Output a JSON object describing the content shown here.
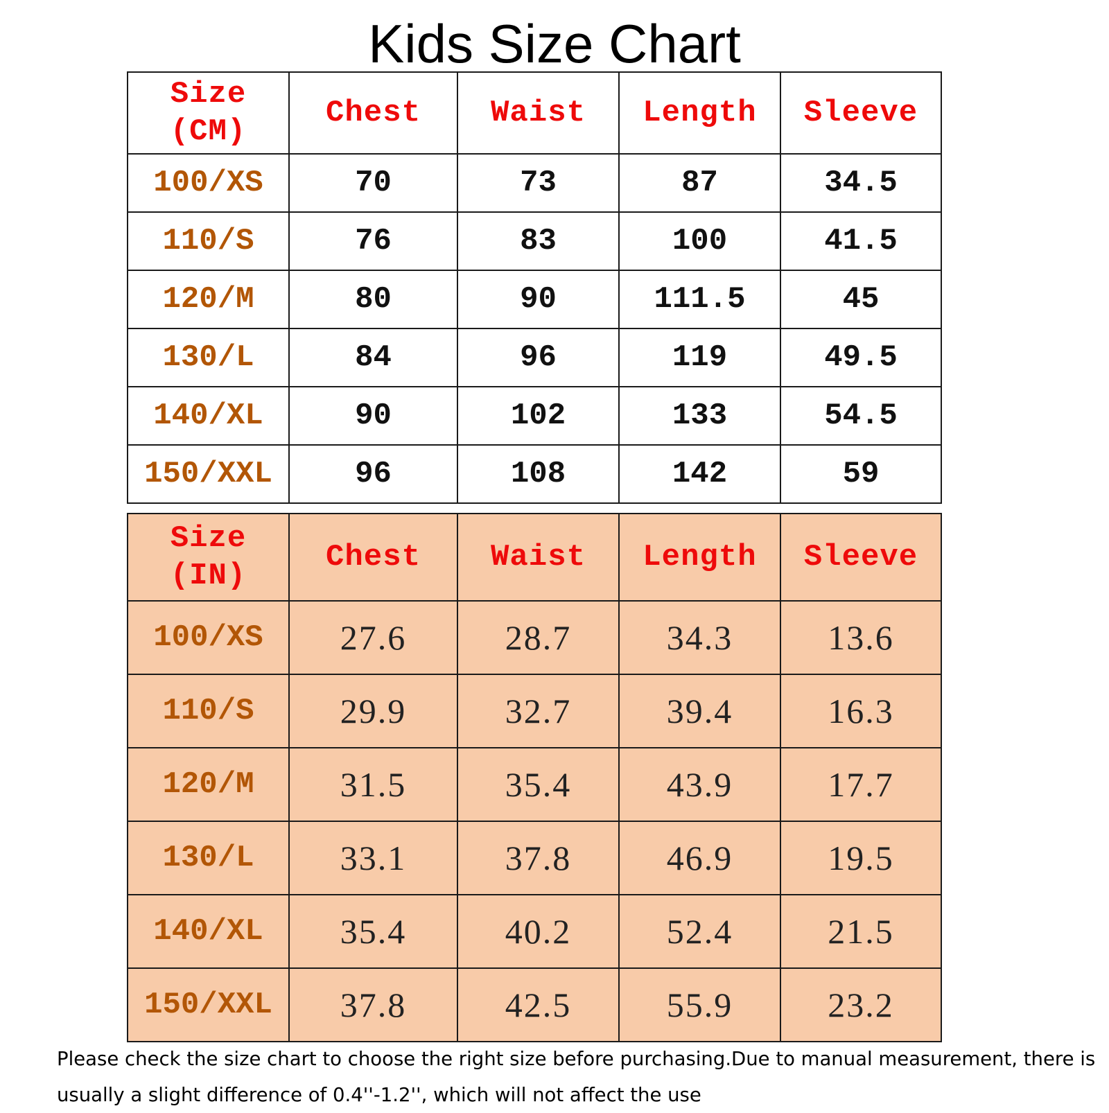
{
  "title": "Kids Size Chart",
  "colors": {
    "header_text": "#ee0a0a",
    "size_text": "#b25606",
    "inch_table_bg": "#f8cba9"
  },
  "table_cm": {
    "size_header_line1": "Size",
    "size_header_line2": "(CM)",
    "headers": [
      "Chest",
      "Waist",
      "Length",
      "Sleeve"
    ],
    "rows": [
      {
        "size": "100/XS",
        "chest": "70",
        "waist": "73",
        "length": "87",
        "sleeve": "34.5"
      },
      {
        "size": "110/S",
        "chest": "76",
        "waist": "83",
        "length": "100",
        "sleeve": "41.5"
      },
      {
        "size": "120/M",
        "chest": "80",
        "waist": "90",
        "length": "111.5",
        "sleeve": "45"
      },
      {
        "size": "130/L",
        "chest": "84",
        "waist": "96",
        "length": "119",
        "sleeve": "49.5"
      },
      {
        "size": "140/XL",
        "chest": "90",
        "waist": "102",
        "length": "133",
        "sleeve": "54.5"
      },
      {
        "size": "150/XXL",
        "chest": "96",
        "waist": "108",
        "length": "142",
        "sleeve": "59"
      }
    ]
  },
  "table_in": {
    "size_header_line1": "Size",
    "size_header_line2": "(IN)",
    "headers": [
      "Chest",
      "Waist",
      "Length",
      "Sleeve"
    ],
    "rows": [
      {
        "size": "100/XS",
        "chest": "27.6",
        "waist": "28.7",
        "length": "34.3",
        "sleeve": "13.6"
      },
      {
        "size": "110/S",
        "chest": "29.9",
        "waist": "32.7",
        "length": "39.4",
        "sleeve": "16.3"
      },
      {
        "size": "120/M",
        "chest": "31.5",
        "waist": "35.4",
        "length": "43.9",
        "sleeve": "17.7"
      },
      {
        "size": "130/L",
        "chest": "33.1",
        "waist": "37.8",
        "length": "46.9",
        "sleeve": "19.5"
      },
      {
        "size": "140/XL",
        "chest": "35.4",
        "waist": "40.2",
        "length": "52.4",
        "sleeve": "21.5"
      },
      {
        "size": "150/XXL",
        "chest": "37.8",
        "waist": "42.5",
        "length": "55.9",
        "sleeve": "23.2"
      }
    ]
  },
  "note": "Please check the size chart to choose the right size before purchasing.Due to manual measurement, there is usually a slight difference of 0.4''-1.2'', which will not affect the use"
}
